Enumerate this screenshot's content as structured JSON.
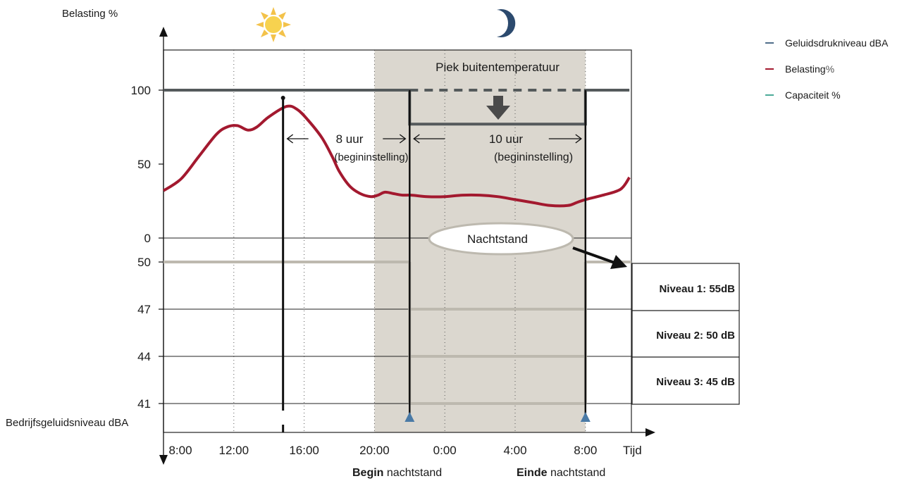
{
  "chart_data": {
    "type": "line",
    "title": "",
    "upper_axis": {
      "label": "Belasting %",
      "ticks": [
        {
          "value": 100,
          "label": "100"
        },
        {
          "value": 50,
          "label": "50"
        },
        {
          "value": 0,
          "label": "0"
        }
      ]
    },
    "lower_axis": {
      "label": "Bedrijfsgeluidsniveau dBA",
      "ticks": [
        {
          "value": 50,
          "label": "50"
        },
        {
          "value": 47,
          "label": "47"
        },
        {
          "value": 44,
          "label": "44"
        },
        {
          "value": 41,
          "label": "41"
        }
      ]
    },
    "x_axis": {
      "label": "Tijd",
      "ticks": [
        {
          "hour": 0,
          "label": "8:00"
        },
        {
          "hour": 4,
          "label": "12:00"
        },
        {
          "hour": 8,
          "label": "16:00"
        },
        {
          "hour": 12,
          "label": "20:00"
        },
        {
          "hour": 16,
          "label": "0:00"
        },
        {
          "hour": 20,
          "label": "4:00"
        },
        {
          "hour": 24,
          "label": "8:00"
        }
      ]
    },
    "series": [
      {
        "name": "Belasting %",
        "color": "#a3192f",
        "points": [
          [
            0,
            32
          ],
          [
            1,
            40
          ],
          [
            2,
            55
          ],
          [
            3,
            70
          ],
          [
            3.6,
            75
          ],
          [
            4.2,
            76
          ],
          [
            4.8,
            73
          ],
          [
            5.3,
            75
          ],
          [
            6,
            82
          ],
          [
            7,
            89
          ],
          [
            7.6,
            87
          ],
          [
            8.2,
            80
          ],
          [
            9,
            68
          ],
          [
            9.6,
            55
          ],
          [
            10,
            45
          ],
          [
            10.6,
            35
          ],
          [
            11.2,
            30
          ],
          [
            11.8,
            28
          ],
          [
            12.2,
            29
          ],
          [
            12.6,
            31
          ],
          [
            13.1,
            30
          ],
          [
            13.6,
            29
          ],
          [
            14.1,
            29
          ],
          [
            15,
            28
          ],
          [
            16,
            28
          ],
          [
            17,
            29
          ],
          [
            18,
            29
          ],
          [
            19,
            28
          ],
          [
            20,
            26
          ],
          [
            21,
            24
          ],
          [
            22,
            22
          ],
          [
            23,
            22
          ],
          [
            23.5,
            24
          ],
          [
            24,
            26
          ],
          [
            25,
            29
          ],
          [
            26,
            33
          ],
          [
            26.5,
            41
          ]
        ]
      },
      {
        "name": "Capaciteit %",
        "color": "#555a5c",
        "points": [
          [
            0,
            100
          ],
          [
            14,
            100
          ],
          [
            14,
            77
          ],
          [
            24,
            77
          ],
          [
            24,
            100
          ],
          [
            26.5,
            100
          ]
        ]
      },
      {
        "name": "Geluidsdrukniveau dBA",
        "color": "#bdb9af",
        "points": [
          [
            0,
            50
          ],
          [
            14,
            50
          ],
          [
            14,
            41
          ],
          [
            24,
            41
          ],
          [
            24,
            50
          ],
          [
            26.5,
            50
          ]
        ]
      }
    ],
    "night_band": {
      "start_hour": 12,
      "end_hour": 24
    },
    "night_start_hour": 14,
    "night_end_hour": 24,
    "peak_hour": 6.8,
    "night_levels_dB": [
      47,
      44,
      41
    ],
    "annotations": {
      "peak_temp": "Piek buitentemperatuur",
      "before_hours": "8 uur",
      "before_note": "(begininstelling)",
      "after_hours": "10 uur",
      "after_note": "(begininstelling)",
      "night_mode": "Nachtstand"
    },
    "levels_table": [
      {
        "label": "Niveau 1: 55dB"
      },
      {
        "label": "Niveau 2: 50 dB"
      },
      {
        "label": "Niveau 3: 45 dB"
      }
    ],
    "bottom_labels": {
      "begin_bold": "Begin",
      "begin_rest": " nachtstand",
      "end_bold": "Einde",
      "end_rest": " nachtstand"
    },
    "legend": [
      {
        "label": "Geluidsdrukniveau dBA",
        "color": "#4f6d8a"
      },
      {
        "label_main": "Belasting",
        "label_unit": " %",
        "color": "#a3192f"
      },
      {
        "label": "Capaciteit %",
        "color": "#4caa98"
      }
    ],
    "icons": {
      "day": "sun-icon",
      "night": "moon-icon"
    }
  }
}
